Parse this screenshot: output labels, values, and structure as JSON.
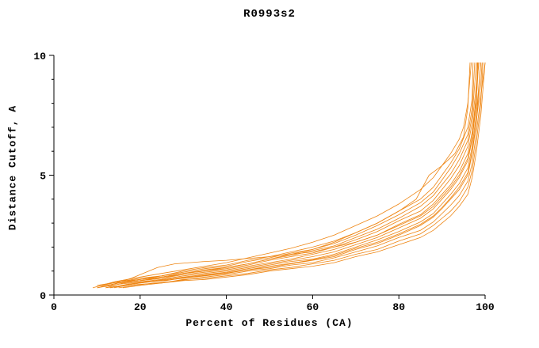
{
  "chart_data": {
    "type": "line",
    "title": "R0993s2",
    "xlabel": "Percent of Residues (CA)",
    "ylabel": "Distance Cutoff, A",
    "xlim": [
      0,
      100
    ],
    "ylim": [
      0,
      10
    ],
    "xticks": [
      0,
      20,
      40,
      60,
      80,
      100
    ],
    "yticks": [
      0,
      5,
      10
    ],
    "ytick_minor_step": 1,
    "grid": false,
    "legend": "none",
    "line_color": "#ee8512",
    "series": [
      [
        [
          10,
          0.3
        ],
        [
          15,
          0.45
        ],
        [
          20,
          0.55
        ],
        [
          25,
          0.65
        ],
        [
          30,
          0.8
        ],
        [
          35,
          0.9
        ],
        [
          40,
          1.0
        ],
        [
          45,
          1.15
        ],
        [
          50,
          1.3
        ],
        [
          55,
          1.45
        ],
        [
          60,
          1.6
        ],
        [
          65,
          1.8
        ],
        [
          70,
          2.1
        ],
        [
          75,
          2.4
        ],
        [
          80,
          2.8
        ],
        [
          85,
          3.2
        ],
        [
          88,
          3.6
        ],
        [
          90,
          4.0
        ],
        [
          92,
          4.4
        ],
        [
          94,
          4.9
        ],
        [
          96,
          5.6
        ],
        [
          97,
          6.5
        ],
        [
          98,
          8.0
        ],
        [
          98.3,
          9.7
        ]
      ],
      [
        [
          12,
          0.3
        ],
        [
          16,
          0.4
        ],
        [
          20,
          0.5
        ],
        [
          25,
          0.6
        ],
        [
          30,
          0.7
        ],
        [
          35,
          0.8
        ],
        [
          40,
          0.9
        ],
        [
          45,
          1.05
        ],
        [
          50,
          1.15
        ],
        [
          55,
          1.3
        ],
        [
          60,
          1.45
        ],
        [
          65,
          1.6
        ],
        [
          70,
          1.9
        ],
        [
          75,
          2.15
        ],
        [
          80,
          2.5
        ],
        [
          85,
          2.9
        ],
        [
          88,
          3.25
        ],
        [
          90,
          3.6
        ],
        [
          92,
          4.0
        ],
        [
          94,
          4.4
        ],
        [
          96,
          5.0
        ],
        [
          97,
          5.9
        ],
        [
          98,
          7.2
        ],
        [
          99,
          9.7
        ]
      ],
      [
        [
          11,
          0.35
        ],
        [
          15,
          0.5
        ],
        [
          20,
          0.6
        ],
        [
          25,
          0.7
        ],
        [
          30,
          0.9
        ],
        [
          35,
          1.0
        ],
        [
          40,
          1.1
        ],
        [
          45,
          1.25
        ],
        [
          50,
          1.45
        ],
        [
          55,
          1.6
        ],
        [
          60,
          1.75
        ],
        [
          65,
          2.0
        ],
        [
          70,
          2.3
        ],
        [
          75,
          2.65
        ],
        [
          80,
          3.1
        ],
        [
          85,
          3.5
        ],
        [
          88,
          3.95
        ],
        [
          90,
          4.4
        ],
        [
          92,
          4.85
        ],
        [
          94,
          5.4
        ],
        [
          96,
          6.2
        ],
        [
          97,
          7.2
        ],
        [
          98,
          8.8
        ],
        [
          98.6,
          9.7
        ]
      ],
      [
        [
          13,
          0.3
        ],
        [
          17,
          0.4
        ],
        [
          20,
          0.45
        ],
        [
          25,
          0.5
        ],
        [
          30,
          0.65
        ],
        [
          35,
          0.7
        ],
        [
          40,
          0.8
        ],
        [
          45,
          0.9
        ],
        [
          50,
          1.05
        ],
        [
          55,
          1.15
        ],
        [
          60,
          1.3
        ],
        [
          65,
          1.45
        ],
        [
          70,
          1.7
        ],
        [
          75,
          1.9
        ],
        [
          80,
          2.25
        ],
        [
          85,
          2.55
        ],
        [
          88,
          2.9
        ],
        [
          90,
          3.2
        ],
        [
          92,
          3.5
        ],
        [
          94,
          3.9
        ],
        [
          96,
          4.5
        ],
        [
          97,
          5.2
        ],
        [
          98,
          6.4
        ],
        [
          99,
          8.0
        ],
        [
          99.5,
          9.7
        ]
      ],
      [
        [
          10,
          0.35
        ],
        [
          15,
          0.55
        ],
        [
          20,
          0.65
        ],
        [
          25,
          0.8
        ],
        [
          30,
          0.95
        ],
        [
          35,
          1.1
        ],
        [
          40,
          1.2
        ],
        [
          45,
          1.4
        ],
        [
          50,
          1.55
        ],
        [
          55,
          1.75
        ],
        [
          60,
          1.9
        ],
        [
          65,
          2.15
        ],
        [
          70,
          2.5
        ],
        [
          75,
          2.9
        ],
        [
          80,
          3.35
        ],
        [
          85,
          3.85
        ],
        [
          88,
          4.3
        ],
        [
          90,
          4.8
        ],
        [
          92,
          5.3
        ],
        [
          94,
          5.9
        ],
        [
          96,
          6.7
        ],
        [
          97,
          7.8
        ],
        [
          97.6,
          9.7
        ]
      ],
      [
        [
          14,
          0.3
        ],
        [
          18,
          0.45
        ],
        [
          22,
          0.55
        ],
        [
          26,
          0.65
        ],
        [
          30,
          0.75
        ],
        [
          35,
          0.85
        ],
        [
          40,
          0.95
        ],
        [
          45,
          1.1
        ],
        [
          50,
          1.25
        ],
        [
          55,
          1.4
        ],
        [
          60,
          1.5
        ],
        [
          65,
          1.7
        ],
        [
          70,
          2.0
        ],
        [
          75,
          2.3
        ],
        [
          80,
          2.65
        ],
        [
          85,
          3.05
        ],
        [
          88,
          3.4
        ],
        [
          90,
          3.8
        ],
        [
          92,
          4.2
        ],
        [
          94,
          4.65
        ],
        [
          96,
          5.3
        ],
        [
          97,
          6.2
        ],
        [
          98,
          7.6
        ],
        [
          99,
          9.7
        ]
      ],
      [
        [
          12,
          0.3
        ],
        [
          16,
          0.5
        ],
        [
          20,
          0.6
        ],
        [
          25,
          0.7
        ],
        [
          30,
          0.85
        ],
        [
          35,
          0.95
        ],
        [
          40,
          1.05
        ],
        [
          45,
          1.2
        ],
        [
          50,
          1.35
        ],
        [
          55,
          1.5
        ],
        [
          60,
          1.7
        ],
        [
          65,
          1.9
        ],
        [
          70,
          2.2
        ],
        [
          75,
          2.5
        ],
        [
          80,
          2.95
        ],
        [
          85,
          3.35
        ],
        [
          88,
          3.8
        ],
        [
          90,
          4.2
        ],
        [
          92,
          4.6
        ],
        [
          94,
          5.15
        ],
        [
          96,
          5.9
        ],
        [
          97,
          6.8
        ],
        [
          98,
          8.4
        ],
        [
          98.2,
          9.7
        ]
      ],
      [
        [
          15,
          0.3
        ],
        [
          19,
          0.4
        ],
        [
          23,
          0.5
        ],
        [
          27,
          0.55
        ],
        [
          31,
          0.65
        ],
        [
          35,
          0.75
        ],
        [
          40,
          0.85
        ],
        [
          45,
          1.0
        ],
        [
          50,
          1.1
        ],
        [
          55,
          1.25
        ],
        [
          60,
          1.35
        ],
        [
          65,
          1.55
        ],
        [
          70,
          1.8
        ],
        [
          75,
          2.05
        ],
        [
          80,
          2.4
        ],
        [
          85,
          2.7
        ],
        [
          88,
          3.05
        ],
        [
          90,
          3.4
        ],
        [
          92,
          3.75
        ],
        [
          94,
          4.15
        ],
        [
          96,
          4.75
        ],
        [
          97,
          5.5
        ],
        [
          98,
          6.8
        ],
        [
          99,
          8.3
        ],
        [
          100,
          9.7
        ]
      ],
      [
        [
          11,
          0.35
        ],
        [
          15,
          0.5
        ],
        [
          20,
          0.65
        ],
        [
          25,
          0.75
        ],
        [
          30,
          0.9
        ],
        [
          35,
          1.05
        ],
        [
          40,
          1.15
        ],
        [
          45,
          1.3
        ],
        [
          50,
          1.5
        ],
        [
          55,
          1.65
        ],
        [
          60,
          1.85
        ],
        [
          65,
          2.05
        ],
        [
          70,
          2.4
        ],
        [
          75,
          2.75
        ],
        [
          80,
          3.2
        ],
        [
          85,
          3.7
        ],
        [
          88,
          4.15
        ],
        [
          90,
          4.6
        ],
        [
          92,
          5.05
        ],
        [
          94,
          5.65
        ],
        [
          96,
          6.45
        ],
        [
          97,
          7.5
        ],
        [
          98,
          9.7
        ]
      ],
      [
        [
          10,
          0.3
        ],
        [
          15,
          0.5
        ],
        [
          20,
          0.6
        ],
        [
          25,
          0.75
        ],
        [
          30,
          0.9
        ],
        [
          35,
          1.0
        ],
        [
          40,
          1.15
        ],
        [
          45,
          1.3
        ],
        [
          50,
          1.5
        ],
        [
          55,
          1.7
        ],
        [
          60,
          1.9
        ],
        [
          65,
          2.2
        ],
        [
          70,
          2.6
        ],
        [
          75,
          3.0
        ],
        [
          80,
          3.5
        ],
        [
          84,
          4.0
        ],
        [
          87,
          5.0
        ],
        [
          90,
          5.4
        ],
        [
          93,
          5.9
        ],
        [
          95,
          6.6
        ],
        [
          96,
          7.8
        ],
        [
          96.5,
          9.7
        ]
      ],
      [
        [
          16,
          0.3
        ],
        [
          20,
          0.4
        ],
        [
          25,
          0.5
        ],
        [
          30,
          0.6
        ],
        [
          35,
          0.65
        ],
        [
          40,
          0.75
        ],
        [
          45,
          0.85
        ],
        [
          50,
          1.0
        ],
        [
          55,
          1.1
        ],
        [
          60,
          1.2
        ],
        [
          65,
          1.35
        ],
        [
          70,
          1.6
        ],
        [
          75,
          1.8
        ],
        [
          80,
          2.1
        ],
        [
          85,
          2.4
        ],
        [
          88,
          2.7
        ],
        [
          90,
          3.0
        ],
        [
          92,
          3.3
        ],
        [
          94,
          3.7
        ],
        [
          96,
          4.2
        ],
        [
          97,
          4.9
        ],
        [
          98,
          6.0
        ],
        [
          99,
          7.5
        ],
        [
          100,
          9.7
        ]
      ],
      [
        [
          10,
          0.4
        ],
        [
          15,
          0.55
        ],
        [
          20,
          0.7
        ],
        [
          25,
          0.8
        ],
        [
          30,
          1.0
        ],
        [
          35,
          1.15
        ],
        [
          40,
          1.25
        ],
        [
          45,
          1.45
        ],
        [
          50,
          1.6
        ],
        [
          55,
          1.8
        ],
        [
          60,
          2.0
        ],
        [
          65,
          2.25
        ],
        [
          70,
          2.6
        ],
        [
          75,
          3.0
        ],
        [
          80,
          3.5
        ],
        [
          85,
          4.0
        ],
        [
          88,
          4.5
        ],
        [
          90,
          5.0
        ],
        [
          92,
          5.5
        ],
        [
          94,
          6.1
        ],
        [
          96,
          7.0
        ],
        [
          97,
          8.2
        ],
        [
          97.2,
          9.7
        ]
      ],
      [
        [
          13,
          0.3
        ],
        [
          17,
          0.45
        ],
        [
          21,
          0.55
        ],
        [
          26,
          0.6
        ],
        [
          30,
          0.72
        ],
        [
          35,
          0.82
        ],
        [
          40,
          0.92
        ],
        [
          45,
          1.05
        ],
        [
          50,
          1.2
        ],
        [
          55,
          1.32
        ],
        [
          60,
          1.47
        ],
        [
          65,
          1.65
        ],
        [
          70,
          1.95
        ],
        [
          75,
          2.2
        ],
        [
          80,
          2.55
        ],
        [
          85,
          2.95
        ],
        [
          88,
          3.3
        ],
        [
          90,
          3.65
        ],
        [
          92,
          4.05
        ],
        [
          94,
          4.5
        ],
        [
          96,
          5.1
        ],
        [
          97,
          6.0
        ],
        [
          98,
          7.3
        ],
        [
          99,
          8.8
        ],
        [
          99.3,
          9.7
        ]
      ],
      [
        [
          9,
          0.3
        ],
        [
          14,
          0.55
        ],
        [
          20,
          0.75
        ],
        [
          25,
          0.9
        ],
        [
          30,
          1.05
        ],
        [
          35,
          1.2
        ],
        [
          40,
          1.35
        ],
        [
          45,
          1.55
        ],
        [
          50,
          1.75
        ],
        [
          55,
          1.95
        ],
        [
          60,
          2.2
        ],
        [
          65,
          2.5
        ],
        [
          70,
          2.9
        ],
        [
          75,
          3.3
        ],
        [
          80,
          3.8
        ],
        [
          85,
          4.4
        ],
        [
          88,
          4.9
        ],
        [
          90,
          5.4
        ],
        [
          92,
          5.9
        ],
        [
          94,
          6.5
        ],
        [
          95,
          7.0
        ],
        [
          96,
          8.0
        ],
        [
          96.8,
          9.7
        ]
      ],
      [
        [
          12,
          0.35
        ],
        [
          18,
          0.7
        ],
        [
          24,
          1.15
        ],
        [
          28,
          1.3
        ],
        [
          35,
          1.4
        ],
        [
          40,
          1.45
        ],
        [
          50,
          1.6
        ],
        [
          60,
          1.8
        ],
        [
          70,
          2.2
        ],
        [
          75,
          2.5
        ],
        [
          80,
          2.9
        ],
        [
          85,
          3.3
        ],
        [
          88,
          3.7
        ],
        [
          90,
          4.1
        ],
        [
          92,
          4.5
        ],
        [
          94,
          5.0
        ],
        [
          96,
          5.7
        ],
        [
          97,
          6.6
        ],
        [
          98,
          8.2
        ],
        [
          98.5,
          9.7
        ]
      ]
    ]
  }
}
